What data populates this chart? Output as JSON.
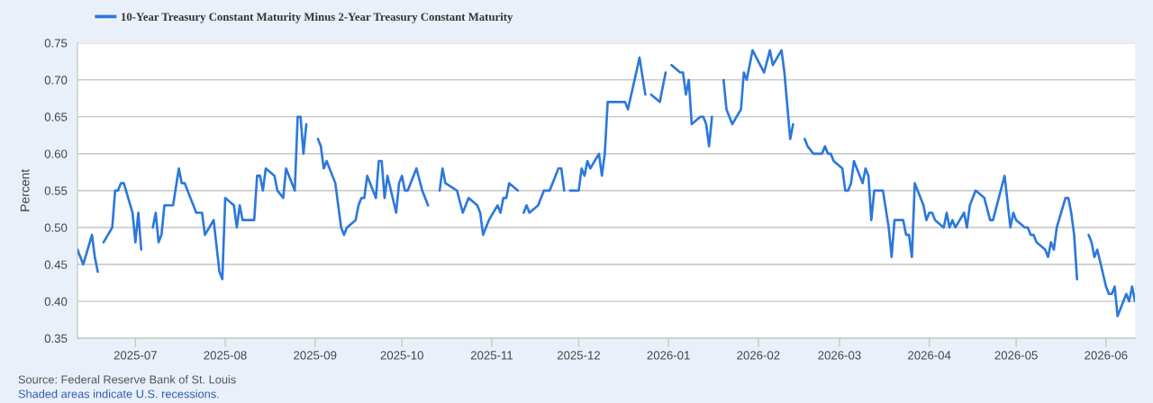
{
  "chart_data": {
    "type": "line",
    "x": [
      "2025-06-11",
      "2025-06-13",
      "2025-06-16",
      "2025-06-17",
      "2025-06-18",
      "2025-06-19",
      "2025-06-20",
      "2025-06-23",
      "2025-06-24",
      "2025-06-25",
      "2025-06-26",
      "2025-06-27",
      "2025-06-30",
      "2025-07-01",
      "2025-07-02",
      "2025-07-03",
      "2025-07-04",
      "2025-07-07",
      "2025-07-08",
      "2025-07-09",
      "2025-07-10",
      "2025-07-11",
      "2025-07-14",
      "2025-07-16",
      "2025-07-17",
      "2025-07-18",
      "2025-07-22",
      "2025-07-24",
      "2025-07-25",
      "2025-07-28",
      "2025-07-30",
      "2025-07-31",
      "2025-08-01",
      "2025-08-04",
      "2025-08-05",
      "2025-08-06",
      "2025-08-07",
      "2025-08-11",
      "2025-08-12",
      "2025-08-13",
      "2025-08-14",
      "2025-08-15",
      "2025-08-18",
      "2025-08-19",
      "2025-08-21",
      "2025-08-22",
      "2025-08-25",
      "2025-08-26",
      "2025-08-27",
      "2025-08-28",
      "2025-08-29",
      "2025-09-01",
      "2025-09-02",
      "2025-09-03",
      "2025-09-04",
      "2025-09-05",
      "2025-09-08",
      "2025-09-09",
      "2025-09-10",
      "2025-09-11",
      "2025-09-12",
      "2025-09-15",
      "2025-09-16",
      "2025-09-17",
      "2025-09-18",
      "2025-09-19",
      "2025-09-22",
      "2025-09-23",
      "2025-09-24",
      "2025-09-25",
      "2025-09-26",
      "2025-09-29",
      "2025-09-30",
      "2025-10-01",
      "2025-10-02",
      "2025-10-03",
      "2025-10-06",
      "2025-10-08",
      "2025-10-10",
      "2025-10-13",
      "2025-10-14",
      "2025-10-15",
      "2025-10-16",
      "2025-10-20",
      "2025-10-22",
      "2025-10-24",
      "2025-10-27",
      "2025-10-28",
      "2025-10-29",
      "2025-10-31",
      "2025-11-03",
      "2025-11-04",
      "2025-11-05",
      "2025-11-06",
      "2025-11-07",
      "2025-11-10",
      "2025-11-11",
      "2025-11-12",
      "2025-11-13",
      "2025-11-14",
      "2025-11-17",
      "2025-11-19",
      "2025-11-21",
      "2025-11-24",
      "2025-11-25",
      "2025-11-26",
      "2025-11-27",
      "2025-11-28",
      "2025-12-01",
      "2025-12-02",
      "2025-12-03",
      "2025-12-04",
      "2025-12-05",
      "2025-12-08",
      "2025-12-09",
      "2025-12-10",
      "2025-12-11",
      "2025-12-17",
      "2025-12-18",
      "2025-12-22",
      "2025-12-24",
      "2025-12-25",
      "2025-12-26",
      "2025-12-29",
      "2025-12-31",
      "2026-01-01",
      "2026-01-02",
      "2026-01-05",
      "2026-01-06",
      "2026-01-07",
      "2026-01-08",
      "2026-01-09",
      "2026-01-12",
      "2026-01-13",
      "2026-01-14",
      "2026-01-15",
      "2026-01-16",
      "2026-01-19",
      "2026-01-20",
      "2026-01-21",
      "2026-01-23",
      "2026-01-26",
      "2026-01-27",
      "2026-01-28",
      "2026-01-30",
      "2026-02-03",
      "2026-02-05",
      "2026-02-06",
      "2026-02-09",
      "2026-02-10",
      "2026-02-12",
      "2026-02-13",
      "2026-02-16",
      "2026-02-17",
      "2026-02-18",
      "2026-02-20",
      "2026-02-23",
      "2026-02-24",
      "2026-02-25",
      "2026-02-26",
      "2026-02-27",
      "2026-03-02",
      "2026-03-03",
      "2026-03-04",
      "2026-03-05",
      "2026-03-06",
      "2026-03-09",
      "2026-03-10",
      "2026-03-11",
      "2026-03-12",
      "2026-03-13",
      "2026-03-16",
      "2026-03-18",
      "2026-03-19",
      "2026-03-20",
      "2026-03-23",
      "2026-03-24",
      "2026-03-25",
      "2026-03-26",
      "2026-03-27",
      "2026-03-30",
      "2026-03-31",
      "2026-04-01",
      "2026-04-02",
      "2026-04-03",
      "2026-04-06",
      "2026-04-07",
      "2026-04-08",
      "2026-04-09",
      "2026-04-10",
      "2026-04-13",
      "2026-04-14",
      "2026-04-15",
      "2026-04-17",
      "2026-04-20",
      "2026-04-22",
      "2026-04-23",
      "2026-04-27",
      "2026-04-29",
      "2026-04-30",
      "2026-05-01",
      "2026-05-04",
      "2026-05-05",
      "2026-05-06",
      "2026-05-07",
      "2026-05-08",
      "2026-05-11",
      "2026-05-12",
      "2026-05-13",
      "2026-05-14",
      "2026-05-15",
      "2026-05-18",
      "2026-05-19",
      "2026-05-20",
      "2026-05-21",
      "2026-05-22",
      "2026-05-25",
      "2026-05-26",
      "2026-05-27",
      "2026-05-28",
      "2026-05-29",
      "2026-06-01",
      "2026-06-02",
      "2026-06-03",
      "2026-06-04",
      "2026-06-05",
      "2026-06-08",
      "2026-06-09",
      "2026-06-10",
      "2026-06-11"
    ],
    "series": [
      {
        "name": "10-Year Treasury Constant Maturity Minus 2-Year Treasury Constant Maturity",
        "color": "#2c78dc",
        "values": [
          0.47,
          0.45,
          0.49,
          0.46,
          0.44,
          null,
          0.48,
          0.5,
          0.55,
          0.55,
          0.56,
          0.56,
          0.52,
          0.48,
          0.52,
          0.47,
          null,
          0.5,
          0.52,
          0.48,
          0.49,
          0.53,
          0.53,
          0.58,
          0.56,
          0.56,
          0.52,
          0.52,
          0.49,
          0.51,
          0.44,
          0.43,
          0.54,
          0.53,
          0.5,
          0.53,
          0.51,
          0.51,
          0.57,
          0.57,
          0.55,
          0.58,
          0.57,
          0.55,
          0.54,
          0.58,
          0.55,
          0.65,
          0.65,
          0.6,
          0.64,
          null,
          0.62,
          0.61,
          0.58,
          0.59,
          0.56,
          0.53,
          0.5,
          0.49,
          0.5,
          0.51,
          0.53,
          0.54,
          0.54,
          0.57,
          0.54,
          0.59,
          0.59,
          0.54,
          0.57,
          0.52,
          0.56,
          0.57,
          0.55,
          0.55,
          0.58,
          0.55,
          0.53,
          null,
          0.55,
          0.58,
          0.56,
          0.55,
          0.52,
          0.54,
          0.53,
          0.52,
          0.49,
          0.51,
          0.53,
          0.52,
          0.54,
          0.54,
          0.56,
          0.55,
          null,
          0.52,
          0.53,
          0.52,
          0.53,
          0.55,
          0.55,
          0.58,
          0.58,
          0.55,
          null,
          0.55,
          0.55,
          0.58,
          0.57,
          0.59,
          0.58,
          0.6,
          0.57,
          0.6,
          0.67,
          0.67,
          0.66,
          0.73,
          0.68,
          null,
          0.68,
          0.67,
          0.71,
          null,
          0.72,
          0.71,
          0.71,
          0.68,
          0.7,
          0.64,
          0.65,
          0.65,
          0.64,
          0.61,
          0.65,
          null,
          0.7,
          0.66,
          0.64,
          0.66,
          0.71,
          0.7,
          0.74,
          0.71,
          0.74,
          0.72,
          0.74,
          0.71,
          0.62,
          0.64,
          null,
          0.62,
          0.61,
          0.6,
          0.6,
          0.61,
          0.6,
          0.6,
          0.59,
          0.58,
          0.55,
          0.55,
          0.56,
          0.59,
          0.56,
          0.58,
          0.57,
          0.51,
          0.55,
          0.55,
          0.5,
          0.46,
          0.51,
          0.51,
          0.49,
          0.49,
          0.46,
          0.56,
          0.53,
          0.51,
          0.52,
          0.52,
          0.51,
          0.5,
          0.52,
          0.5,
          0.51,
          0.5,
          0.52,
          0.5,
          0.53,
          0.55,
          0.54,
          0.51,
          0.51,
          0.57,
          0.5,
          0.52,
          0.51,
          0.5,
          0.5,
          0.49,
          0.49,
          0.48,
          0.47,
          0.46,
          0.48,
          0.47,
          0.5,
          0.54,
          0.54,
          0.52,
          0.49,
          0.43,
          null,
          0.49,
          0.48,
          0.46,
          0.47,
          0.42,
          0.41,
          0.41,
          0.42,
          0.38,
          0.41,
          0.4,
          0.42,
          0.4
        ]
      }
    ],
    "ylabel": "Percent",
    "xlim": [
      "2025-06-11",
      "2026-06-11"
    ],
    "xticks": [
      "2025-07",
      "2025-08",
      "2025-09",
      "2025-10",
      "2025-11",
      "2025-12",
      "2026-01",
      "2026-02",
      "2026-03",
      "2026-04",
      "2026-05",
      "2026-06"
    ],
    "ylim": [
      0.35,
      0.75
    ],
    "yticks": [
      0.35,
      {
        "value": 0.4,
        "label": "0.40"
      },
      0.45,
      {
        "value": 0.5,
        "label": "0.50"
      },
      0.55,
      {
        "value": 0.6,
        "label": "0.60"
      },
      0.65,
      {
        "value": 0.7,
        "label": "0.70"
      },
      0.75
    ],
    "grid": "y",
    "legend": "top left",
    "annotations": [
      "Source: Federal Reserve Bank of St. Louis",
      "Shaded areas indicate U.S. recessions."
    ]
  }
}
